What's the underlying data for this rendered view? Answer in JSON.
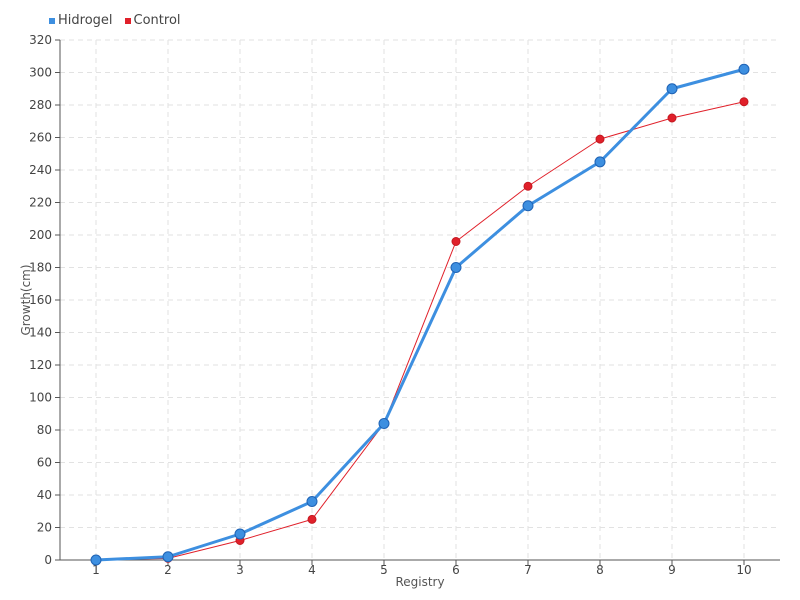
{
  "chart_data": {
    "type": "line",
    "title": "",
    "xlabel": "Registry",
    "ylabel": "Growth(cm)",
    "categories": [
      "1",
      "2",
      "3",
      "4",
      "5",
      "6",
      "7",
      "8",
      "9",
      "10"
    ],
    "ylim": [
      0,
      320
    ],
    "yticks": [
      "0",
      "20",
      "40",
      "60",
      "80",
      "100",
      "120",
      "140",
      "160",
      "180",
      "200",
      "220",
      "240",
      "260",
      "280",
      "300",
      "320"
    ],
    "grid": true,
    "legend_position": "top-left",
    "series": [
      {
        "name": "Hidrogel",
        "color": "#3d8fe0",
        "values": [
          0,
          2,
          16,
          36,
          84,
          180,
          218,
          245,
          290,
          302
        ]
      },
      {
        "name": "Control",
        "color": "#e0202a",
        "values": [
          0,
          1,
          12,
          25,
          84,
          196,
          230,
          259,
          272,
          282
        ]
      }
    ]
  }
}
